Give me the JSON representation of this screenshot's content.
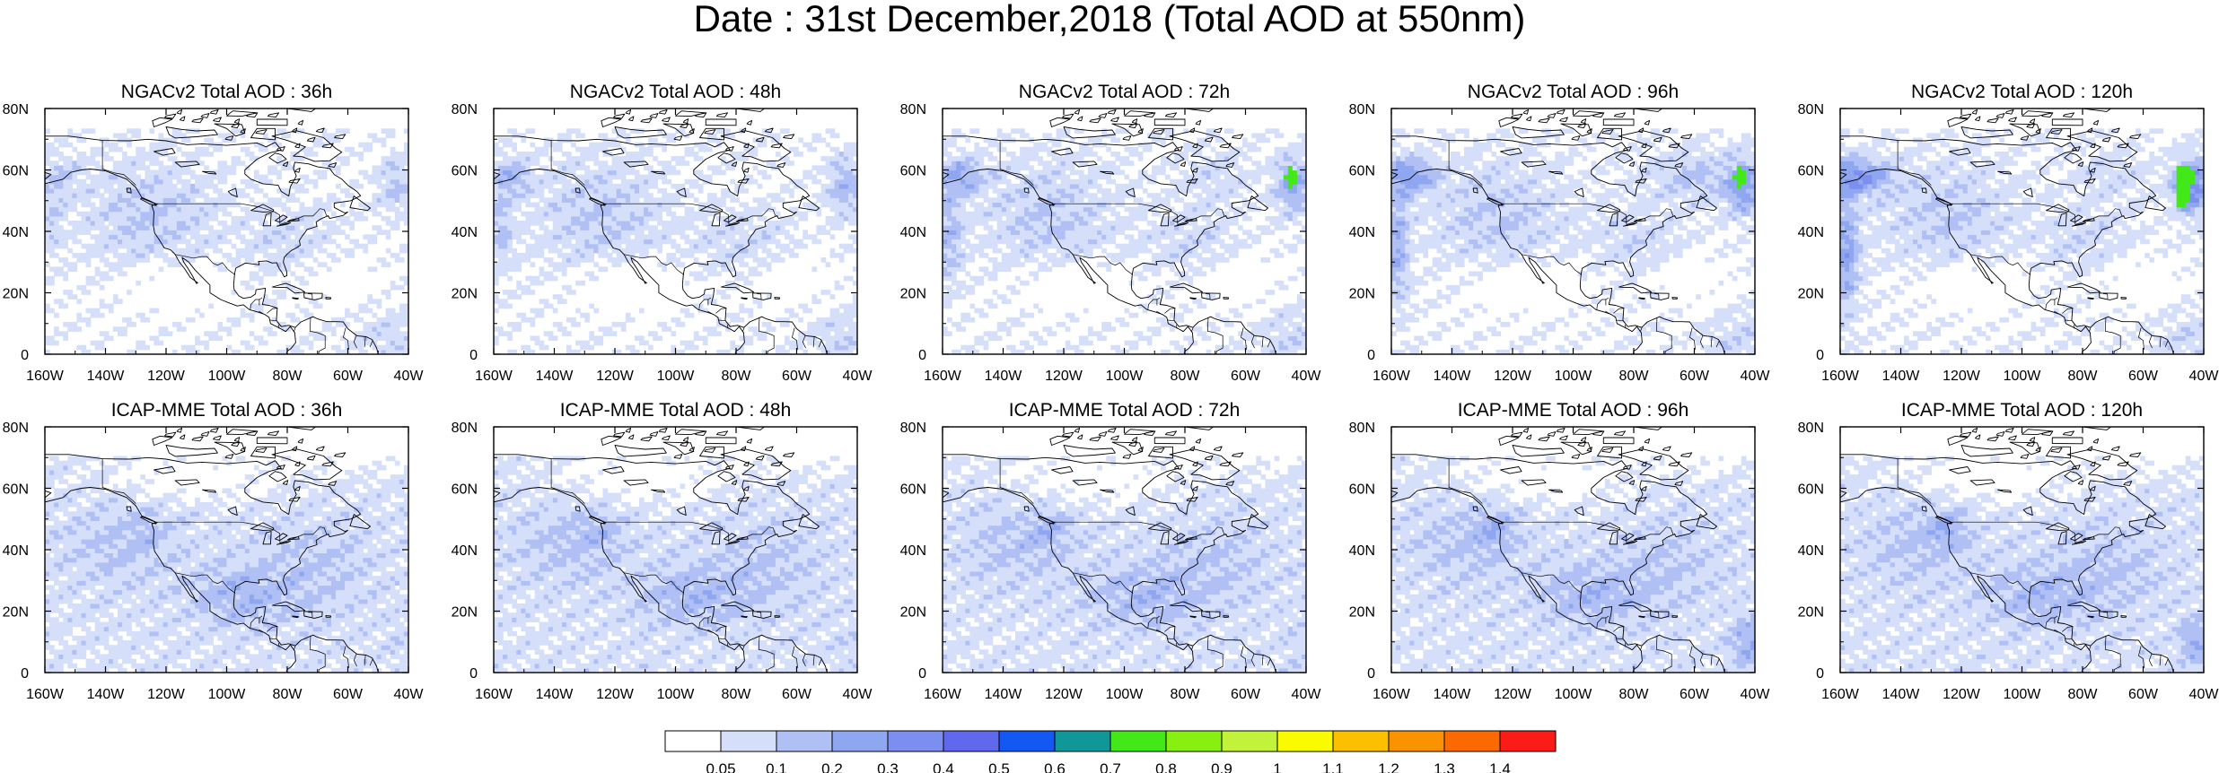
{
  "title": "Date : 31st December,2018 (Total AOD at 550nm)",
  "panels": [
    {
      "title": "NGACv2 Total AOD : 36h",
      "model": "NGACv2",
      "lead": "36h"
    },
    {
      "title": "NGACv2 Total AOD : 48h",
      "model": "NGACv2",
      "lead": "48h"
    },
    {
      "title": "NGACv2 Total AOD : 72h",
      "model": "NGACv2",
      "lead": "72h"
    },
    {
      "title": "NGACv2 Total AOD : 96h",
      "model": "NGACv2",
      "lead": "96h"
    },
    {
      "title": "NGACv2 Total AOD : 120h",
      "model": "NGACv2",
      "lead": "120h"
    },
    {
      "title": "ICAP-MME Total AOD : 36h",
      "model": "ICAP-MME",
      "lead": "36h"
    },
    {
      "title": "ICAP-MME Total AOD : 48h",
      "model": "ICAP-MME",
      "lead": "48h"
    },
    {
      "title": "ICAP-MME Total AOD : 72h",
      "model": "ICAP-MME",
      "lead": "72h"
    },
    {
      "title": "ICAP-MME Total AOD : 96h",
      "model": "ICAP-MME",
      "lead": "96h"
    },
    {
      "title": "ICAP-MME Total AOD : 120h",
      "model": "ICAP-MME",
      "lead": "120h"
    }
  ],
  "map_extent": {
    "lon": [
      -160,
      -40
    ],
    "lat": [
      0,
      80
    ]
  },
  "lon_ticks": [
    "160W",
    "140W",
    "120W",
    "100W",
    "80W",
    "60W",
    "40W"
  ],
  "lat_ticks": [
    "0",
    "20N",
    "40N",
    "60N",
    "80N"
  ],
  "colorbar": {
    "labels": [
      "0.05",
      "0.1",
      "0.2",
      "0.3",
      "0.4",
      "0.5",
      "0.6",
      "0.7",
      "0.8",
      "0.9",
      "1",
      "1.1",
      "1.2",
      "1.3",
      "1.4"
    ],
    "colors": [
      "#ffffff",
      "#d6dffa",
      "#b0c0f4",
      "#8fa6f0",
      "#7c8ef0",
      "#6068ee",
      "#1458f4",
      "#0f9897",
      "#42e818",
      "#88f010",
      "#c2f23a",
      "#fbfb00",
      "#fbc000",
      "#fb9200",
      "#fb6a00",
      "#fb1c18"
    ]
  }
}
